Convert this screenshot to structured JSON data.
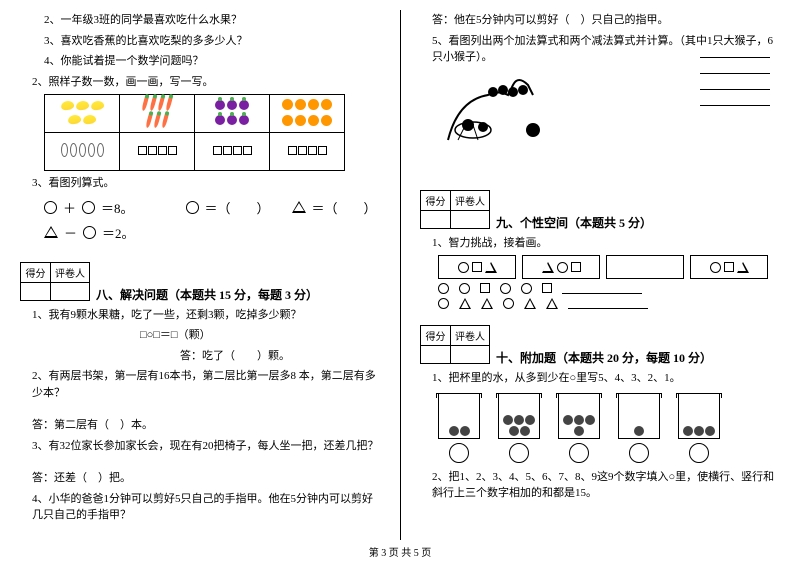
{
  "left": {
    "q_list": [
      "2、一年级3班的同学最喜欢吃什么水果？",
      "3、喜欢吃香蕉的比喜欢吃梨的多多少人？",
      "4、你能试着提一个数学问题吗？"
    ],
    "q2": "2、照样子数一数，画一画，写一写。",
    "q3": "3、看图列算式。",
    "eq1_text": "＝8。",
    "eq2_text": "＝2。",
    "right_eq1": "＝（　　）",
    "right_eq2": "＝（　　）",
    "score_h1": "得分",
    "score_h2": "评卷人",
    "section8": "八、解决问题（本题共 15 分，每题 3 分）",
    "p1": "1、我有9颗水果糖，吃了一些，还剩3颗，吃掉多少颗？",
    "p1_eq": "□○□＝□（颗）",
    "p1_ans": "答：吃了（　　）颗。",
    "p2": "2、有两层书架，第一层有16本书，第二层比第一层多8 本，第二层有多少本？",
    "p2_ans": "答：第二层有（　）本。",
    "p3": "3、有32位家长参加家长会，现在有20把椅子，每人坐一把，还差几把？",
    "p3_ans": "答：还差（　）把。",
    "p4": "4、小华的爸爸1分钟可以剪好5只自己的手指甲。他在5分钟内可以剪好几只自己的手指甲？"
  },
  "right": {
    "p4_ans": "答：他在5分钟内可以剪好（　）只自己的指甲。",
    "p5": "5、看图列出两个加法算式和两个减法算式并计算。（其中1只大猴子，6只小猴子）。",
    "score_h1": "得分",
    "score_h2": "评卷人",
    "section9": "九、个性空间（本题共 5 分）",
    "s9_1": "1、智力挑战，接着画。",
    "section10": "十、附加题（本题共 20 分，每题 10 分）",
    "s10_1": "1、把杯里的水，从多到少在○里写5、4、3、2、1。",
    "s10_2": "2、把1、2、3、4、5、6、7、8、9这9个数字填入○里，使横行、竖行和斜行上三个数字相加的和都是15。"
  },
  "cups": [
    2,
    5,
    4,
    1,
    3
  ],
  "footer": "第 3 页 共 5 页"
}
